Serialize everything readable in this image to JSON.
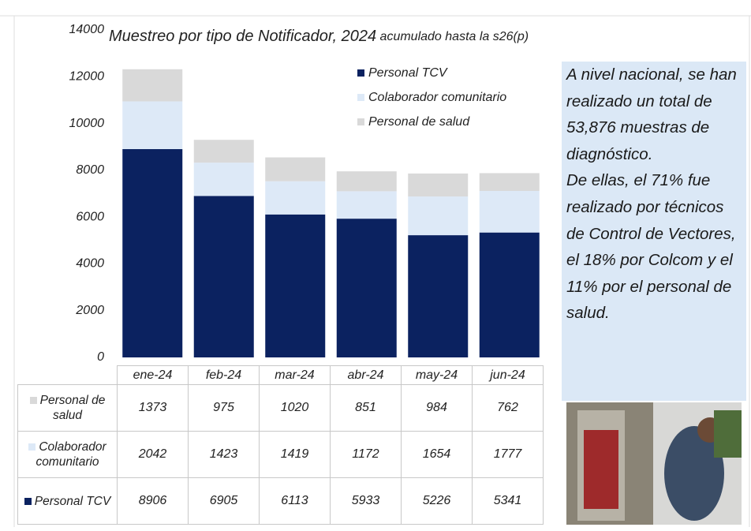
{
  "chart_data": {
    "type": "stacked_bar",
    "title": "Muestreo por tipo de Notificador, 2024",
    "subtitle": "acumulado hasta la s26(p)",
    "categories": [
      "ene-24",
      "feb-24",
      "mar-24",
      "abr-24",
      "may-24",
      "jun-24"
    ],
    "series": [
      {
        "name": "Personal TCV",
        "color": "#0b2260",
        "values": [
          8906,
          6905,
          6113,
          5933,
          5226,
          5341
        ]
      },
      {
        "name": "Colaborador comunitario",
        "color": "#dde9f7",
        "values": [
          2042,
          1423,
          1419,
          1172,
          1654,
          1777
        ]
      },
      {
        "name": "Personal de salud",
        "color": "#d9d9d9",
        "values": [
          1373,
          975,
          1020,
          851,
          984,
          762
        ]
      }
    ],
    "ylim": [
      0,
      14000
    ],
    "yticks": [
      0,
      2000,
      4000,
      6000,
      8000,
      10000,
      12000,
      14000
    ],
    "grid": false,
    "legend": "top-right"
  },
  "note": [
    "A nivel nacional, se han realizado un total de 53,876 muestras de diagnóstico.",
    "De ellas, el 71% fue realizado por técnicos de Control de Vectores, el 18% por Colcom y el 11% por el personal de salud."
  ]
}
